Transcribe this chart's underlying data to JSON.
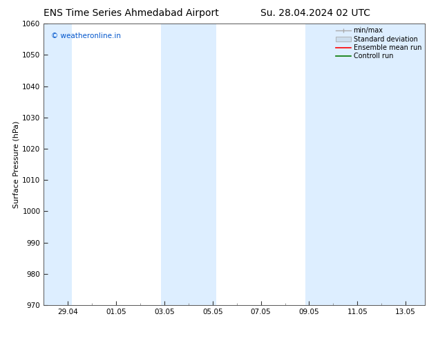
{
  "title_left": "ENS Time Series Ahmedabad Airport",
  "title_right": "Su. 28.04.2024 02 UTC",
  "ylabel": "Surface Pressure (hPa)",
  "ylim": [
    970,
    1060
  ],
  "yticks": [
    970,
    980,
    990,
    1000,
    1010,
    1020,
    1030,
    1040,
    1050,
    1060
  ],
  "xtick_labels": [
    "29.04",
    "01.05",
    "03.05",
    "05.05",
    "07.05",
    "09.05",
    "11.05",
    "13.05"
  ],
  "watermark": "© weatheronline.in",
  "watermark_color": "#0055cc",
  "background_color": "#ffffff",
  "shaded_color": "#ddeeff",
  "legend_entries": [
    {
      "label": "min/max",
      "color": "#aaaaaa",
      "type": "errorbar"
    },
    {
      "label": "Standard deviation",
      "color": "#ccddee",
      "type": "rect"
    },
    {
      "label": "Ensemble mean run",
      "color": "#ff0000",
      "type": "line"
    },
    {
      "label": "Controll run",
      "color": "#007700",
      "type": "line"
    }
  ],
  "title_fontsize": 10,
  "tick_fontsize": 7.5,
  "ylabel_fontsize": 8,
  "legend_fontsize": 7
}
